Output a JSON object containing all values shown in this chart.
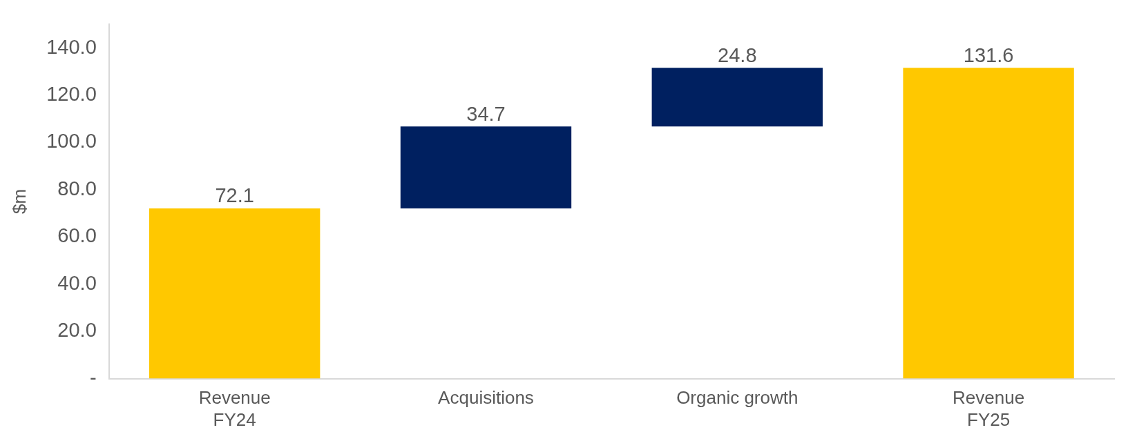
{
  "chart_data": {
    "type": "bar",
    "ylabel": "$m",
    "categories": [
      "Revenue\nFY24",
      "Acquisitions",
      "Organic growth",
      "Revenue\nFY25"
    ],
    "values": [
      72.1,
      34.7,
      24.8,
      131.6
    ],
    "base": [
      0,
      72.1,
      106.8,
      0
    ],
    "colors": [
      "#ffc800",
      "#002060",
      "#002060",
      "#ffc800"
    ],
    "ylim": [
      0,
      150
    ],
    "yticks": [
      {
        "value": 0,
        "label": "-"
      },
      {
        "value": 20,
        "label": "20.0"
      },
      {
        "value": 40,
        "label": "40.0"
      },
      {
        "value": 60,
        "label": "60.0"
      },
      {
        "value": 80,
        "label": "80.0"
      },
      {
        "value": 100,
        "label": "100.0"
      },
      {
        "value": 120,
        "label": "120.0"
      },
      {
        "value": 140,
        "label": "140.0"
      }
    ],
    "data_labels": true,
    "grid": false,
    "legend": false
  }
}
